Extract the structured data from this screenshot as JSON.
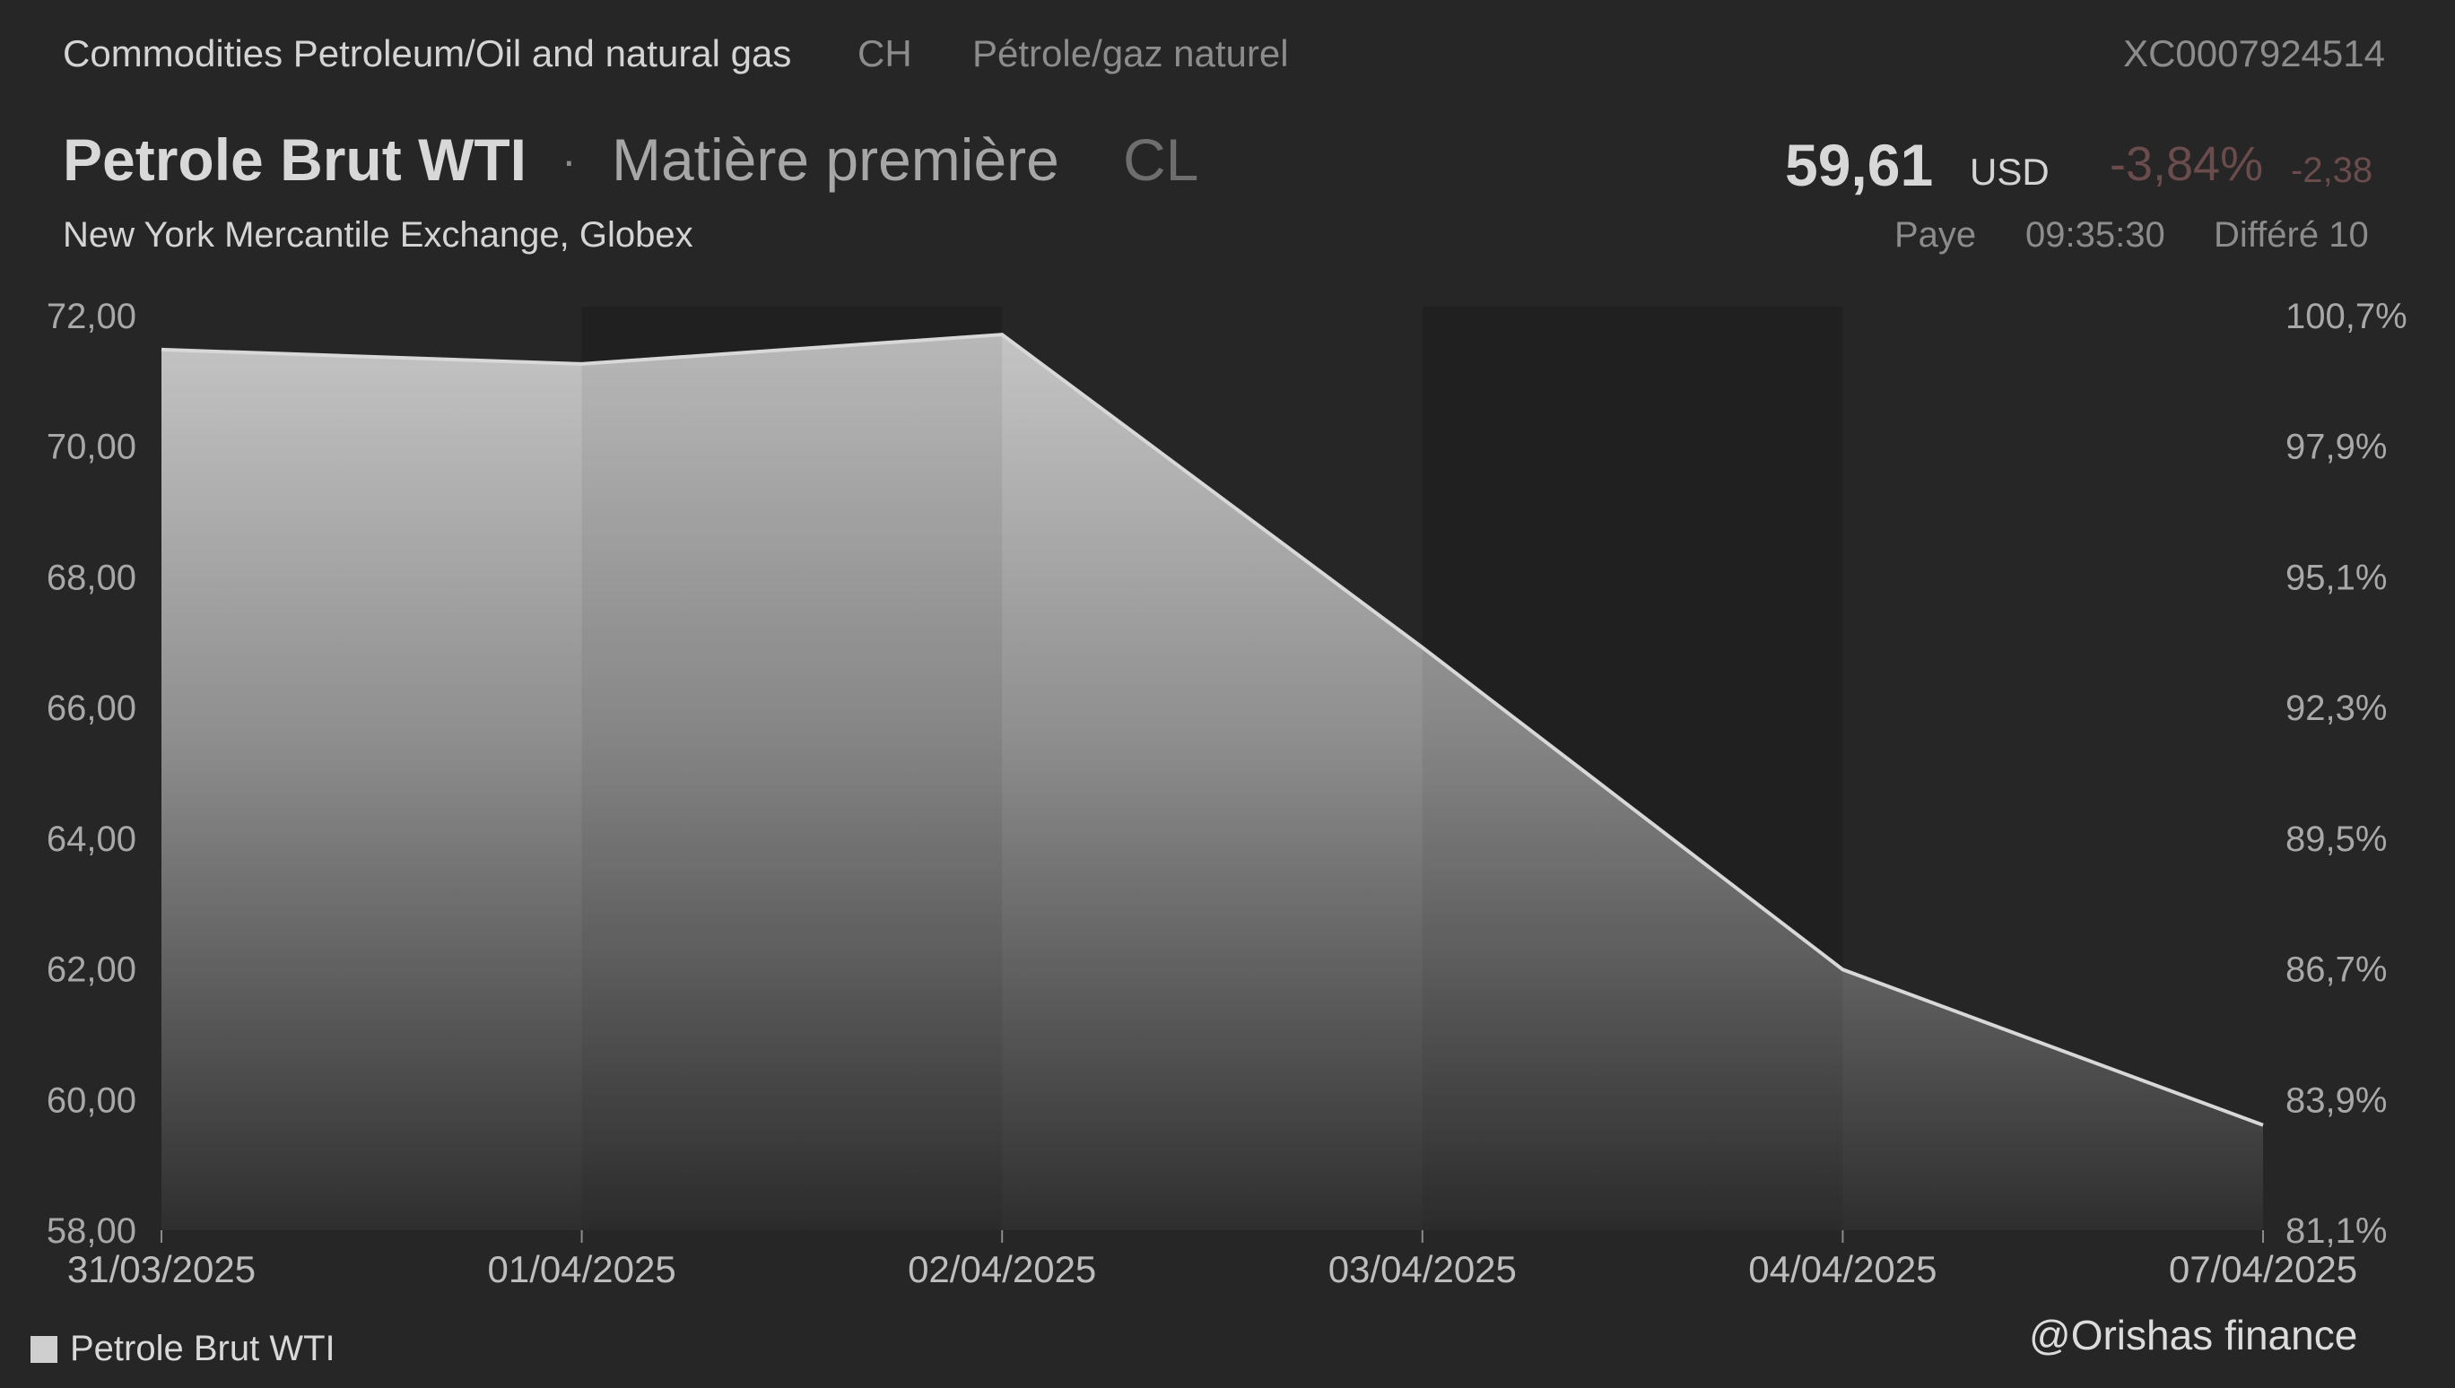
{
  "header": {
    "breadcrumb": "Commodities Petroleum/Oil and natural gas",
    "exchange_code": "CH",
    "category_fr": "Pétrole/gaz naturel",
    "isin": "XC0007924514",
    "title": "Petrole Brut WTI",
    "separator": "·",
    "subtype": "Matière première",
    "ticker": "CL",
    "price": "59,61",
    "currency": "USD",
    "change_pct": "-3,84%",
    "change_abs": "-2,38",
    "market": "New York Mercantile Exchange, Globex",
    "status": "Paye",
    "time": "09:35:30",
    "delay": "Différé 10"
  },
  "chart_data": {
    "type": "area",
    "x": [
      "31/03/2025",
      "01/04/2025",
      "02/04/2025",
      "03/04/2025",
      "04/04/2025",
      "07/04/2025"
    ],
    "series": [
      {
        "name": "Petrole Brut WTI",
        "values": [
          71.48,
          71.26,
          71.71,
          66.92,
          61.99,
          59.61
        ]
      }
    ],
    "ylim": [
      58,
      72
    ],
    "yticks": [
      "72,00",
      "70,00",
      "68,00",
      "66,00",
      "64,00",
      "62,00",
      "60,00",
      "58,00"
    ],
    "y2ticks": [
      "100,7%",
      "97,9%",
      "95,1%",
      "92,3%",
      "89,5%",
      "86,7%",
      "83,9%",
      "81,1%"
    ],
    "legend_position": "bottom-left",
    "grid": false,
    "colors": {
      "line": "#d8d8d8",
      "fill_top": "#c4c4c4",
      "fill_bottom": "#2e2e2e",
      "band": "#202020"
    }
  },
  "watermark": "@Orishas finance"
}
